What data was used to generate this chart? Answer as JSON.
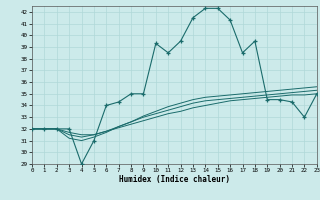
{
  "xlabel": "Humidex (Indice chaleur)",
  "xlim": [
    0,
    23
  ],
  "ylim": [
    29,
    42.5
  ],
  "yticks": [
    29,
    30,
    31,
    32,
    33,
    34,
    35,
    36,
    37,
    38,
    39,
    40,
    41,
    42
  ],
  "xticks": [
    0,
    1,
    2,
    3,
    4,
    5,
    6,
    7,
    8,
    9,
    10,
    11,
    12,
    13,
    14,
    15,
    16,
    17,
    18,
    19,
    20,
    21,
    22,
    23
  ],
  "bg_color": "#cceaea",
  "line_color": "#1a6b6b",
  "grid_color": "#b0d8d8",
  "main_series": [
    32,
    32,
    32,
    32,
    29,
    31,
    34,
    34.3,
    35,
    35,
    39.3,
    38.5,
    39.5,
    41.5,
    42.3,
    42.3,
    41.3,
    38.5,
    39.5,
    34.5,
    34.5,
    34.3,
    33,
    35
  ],
  "ref_series1": [
    32,
    32,
    32,
    31.7,
    31.5,
    31.5,
    31.8,
    32.1,
    32.4,
    32.7,
    33.0,
    33.3,
    33.5,
    33.8,
    34.0,
    34.2,
    34.4,
    34.5,
    34.6,
    34.7,
    34.8,
    34.9,
    34.9,
    35.0
  ],
  "ref_series2": [
    32,
    32,
    32,
    31.5,
    31.3,
    31.5,
    31.8,
    32.2,
    32.6,
    33.0,
    33.3,
    33.6,
    33.9,
    34.2,
    34.4,
    34.5,
    34.6,
    34.7,
    34.8,
    34.9,
    35.0,
    35.1,
    35.2,
    35.3
  ],
  "ref_series3": [
    32,
    32,
    32,
    31.2,
    31.0,
    31.3,
    31.7,
    32.2,
    32.6,
    33.1,
    33.5,
    33.9,
    34.2,
    34.5,
    34.7,
    34.8,
    34.9,
    35.0,
    35.1,
    35.2,
    35.3,
    35.4,
    35.5,
    35.6
  ]
}
